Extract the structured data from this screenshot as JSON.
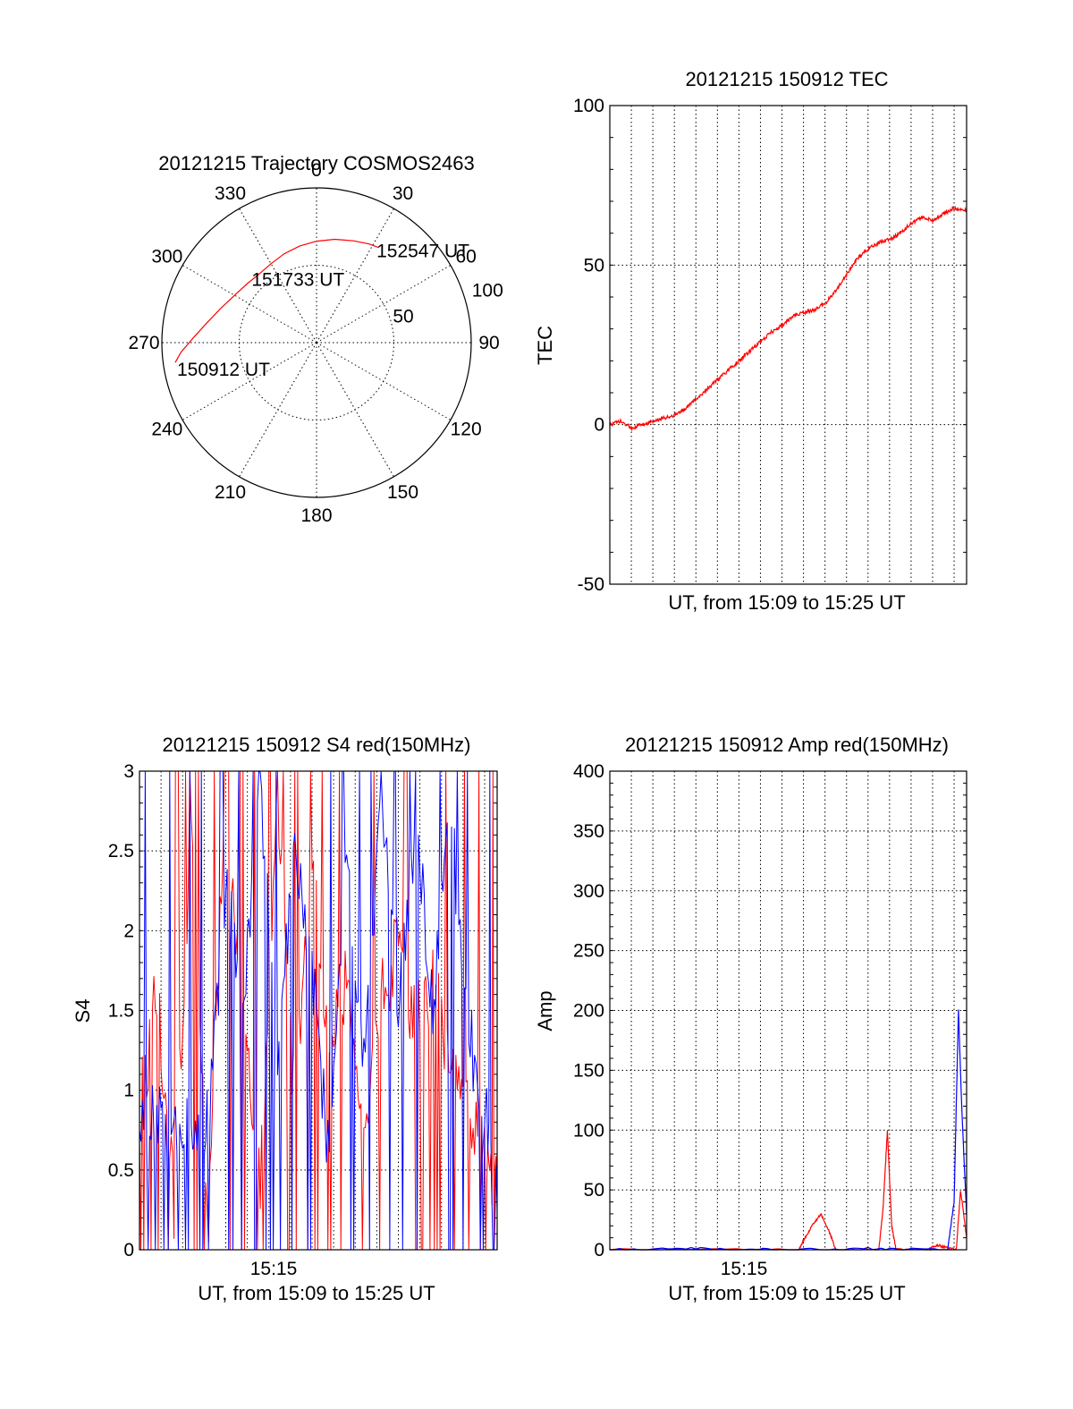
{
  "colors": {
    "red": "#ff0000",
    "blue": "#0000ff",
    "black": "#000000"
  },
  "chart_data": [
    {
      "type": "polar",
      "title": "20121215 Trajectory COSMOS2463",
      "azimuth_labels": [
        "0",
        "30",
        "60",
        "90",
        "120",
        "150",
        "180",
        "210",
        "240",
        "270",
        "300",
        "330"
      ],
      "radial_labels": [
        "50",
        "100"
      ],
      "points": [
        {
          "label": "150912 UT",
          "az": 262,
          "el": 7
        },
        {
          "label": "151733 UT",
          "az": 315,
          "el": 38
        },
        {
          "label": "152547 UT",
          "az": 33,
          "el": 24
        }
      ],
      "series": [
        {
          "color": "red",
          "az": [
            262,
            266,
            272,
            280,
            290,
            300,
            310,
            320,
            330,
            340,
            350,
            0,
            10,
            20,
            28,
            33
          ],
          "el": [
            7,
            11,
            18,
            25,
            31,
            35,
            37,
            38,
            37,
            35,
            33,
            31,
            29,
            27,
            25,
            24
          ]
        }
      ]
    },
    {
      "type": "line",
      "title": "20121215 150912 TEC",
      "ylabel": "TEC",
      "xlabel": "UT, from 15:09 to 15:25 UT",
      "ylim": [
        -50,
        100
      ],
      "yticks": [
        "-50",
        "0",
        "50",
        "100"
      ],
      "xlim": [
        0,
        16.58
      ],
      "series": [
        {
          "color": "red",
          "x": [
            0,
            0.5,
            1,
            1.5,
            2,
            2.5,
            3,
            3.5,
            4,
            4.5,
            5,
            5.5,
            6,
            6.5,
            7,
            7.5,
            8,
            8.5,
            9,
            9.5,
            10,
            10.5,
            11,
            11.5,
            12,
            12.5,
            13,
            13.5,
            14,
            14.5,
            15,
            15.5,
            16,
            16.58
          ],
          "y": [
            0,
            1,
            -1,
            0,
            1,
            2,
            3,
            5,
            8,
            11,
            14,
            17,
            20,
            23,
            26,
            29,
            31,
            34,
            35,
            36,
            38,
            42,
            47,
            52,
            55,
            57,
            58,
            60,
            63,
            65,
            64,
            66,
            68,
            67
          ]
        }
      ]
    },
    {
      "type": "line",
      "title": "20121215 150912 S4 red(150MHz)",
      "ylabel": "S4",
      "xlabel": "UT, from 15:09 to 15:25 UT",
      "xtick_label": "15:15",
      "ylim": [
        0,
        3
      ],
      "yticks": [
        "0",
        "0.5",
        "1",
        "1.5",
        "2",
        "2.5",
        "3"
      ],
      "xlim": [
        0,
        16.58
      ],
      "series": [
        {
          "color": "red",
          "x": [
            0,
            0.8,
            1.6,
            2.4,
            3.2,
            4,
            4.8,
            5.6,
            6.4,
            7.2,
            8,
            8.8,
            9.6,
            10.4,
            11.2,
            12,
            12.8,
            13.6,
            14.4,
            15.2,
            16,
            16.58
          ],
          "y": [
            0.85,
            1.6,
            0.3,
            2.6,
            0.2,
            2.9,
            1.4,
            0.4,
            2.8,
            0.9,
            2.5,
            1.3,
            1.7,
            0.8,
            1.6,
            1.9,
            1.4,
            1.7,
            1.2,
            0.9,
            0.6,
            0.35
          ]
        },
        {
          "color": "blue",
          "x": [
            0,
            0.8,
            1.6,
            2.4,
            3.2,
            4,
            4.8,
            5.6,
            6.4,
            7.2,
            8,
            8.8,
            9.6,
            10.4,
            11.2,
            12,
            12.8,
            13.6,
            14.4,
            15.2,
            16,
            16.58
          ],
          "y": [
            0.85,
            0.8,
            0.85,
            0.82,
            0.8,
            2.3,
            1.4,
            2.9,
            1.2,
            2.6,
            1.8,
            0.5,
            2.4,
            1.1,
            2.9,
            1.6,
            2.7,
            1.5,
            2.8,
            1.4,
            0.9,
            0.25
          ]
        }
      ]
    },
    {
      "type": "line",
      "title": "20121215 150912 Amp red(150MHz)",
      "ylabel": "Amp",
      "xlabel": "UT, from 15:09 to 15:25 UT",
      "xtick_label": "15:15",
      "ylim": [
        0,
        400
      ],
      "yticks": [
        "0",
        "50",
        "100",
        "150",
        "200",
        "250",
        "300",
        "350",
        "400"
      ],
      "xlim": [
        0,
        16.58
      ],
      "series": [
        {
          "color": "red",
          "x": [
            0,
            8.8,
            9.0,
            9.4,
            9.8,
            10.2,
            10.5,
            12.5,
            12.7,
            12.9,
            13.1,
            13.3,
            14.8,
            15.2,
            15.6,
            16.1,
            16.3,
            16.58
          ],
          "y": [
            0,
            0,
            8,
            20,
            30,
            15,
            0,
            0,
            35,
            100,
            20,
            0,
            0,
            4,
            2,
            0,
            50,
            10
          ]
        },
        {
          "color": "blue",
          "x": [
            0,
            4,
            8,
            12,
            15.7,
            16.0,
            16.2,
            16.35,
            16.58
          ],
          "y": [
            0,
            1,
            0,
            1,
            0,
            40,
            200,
            120,
            30
          ]
        }
      ]
    }
  ]
}
